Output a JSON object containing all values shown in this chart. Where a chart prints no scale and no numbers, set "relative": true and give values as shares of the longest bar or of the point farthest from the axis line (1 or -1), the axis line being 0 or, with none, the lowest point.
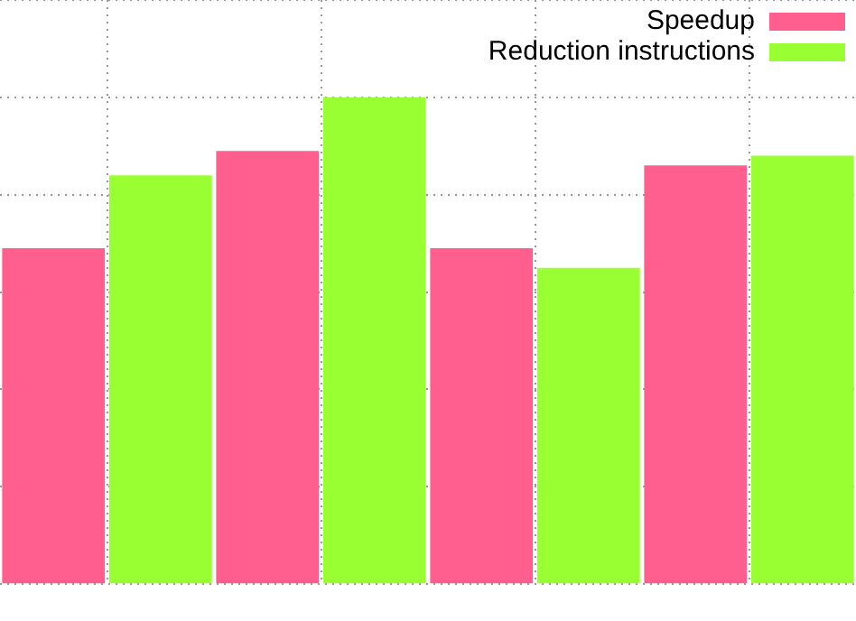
{
  "chart_data": {
    "type": "bar",
    "relative": true,
    "categories": [
      null,
      null,
      null,
      null
    ],
    "series": [
      {
        "name": "Speedup",
        "color": "#ff5f8f",
        "values": [
          0.69,
          0.89,
          0.69,
          0.86
        ]
      },
      {
        "name": "Reduction instructions",
        "color": "#99ff33",
        "values": [
          0.84,
          1,
          0.65,
          0.88
        ]
      }
    ],
    "grid": true,
    "legend": "top right"
  }
}
